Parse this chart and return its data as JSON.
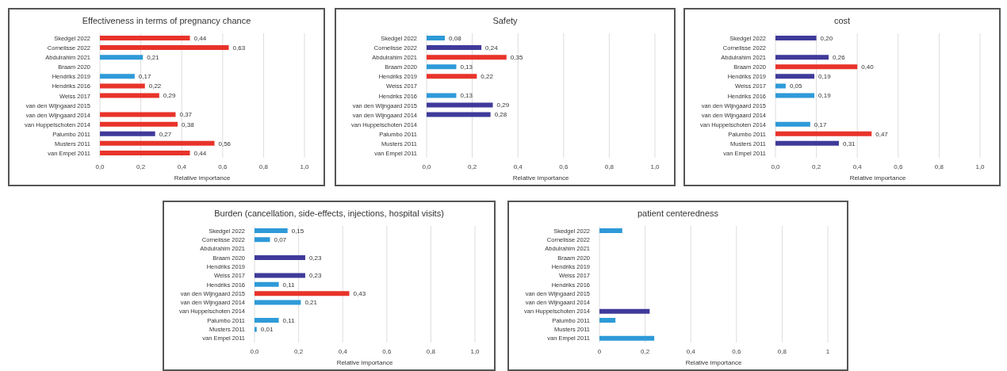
{
  "chart_data": [
    {
      "type": "bar",
      "orientation": "horizontal",
      "title": "Effectiveness in terms of pregnancy chance",
      "xlabel": "Relative importance",
      "grid": "x",
      "categories": [
        "Skedgel 2022",
        "Cornelisse 2022",
        "Abdulrahim 2021",
        "Braam 2020",
        "Hendriks 2019",
        "Hendriks 2016",
        "Weiss 2017",
        "van den Wijngaard 2015",
        "van den Wijngaard 2014",
        "van Huppelschoten 2014",
        "Palumbo 2011",
        "Musters 2011",
        "van Empel 2011"
      ],
      "values": [
        0.44,
        0.63,
        0.21,
        null,
        0.17,
        0.22,
        0.29,
        null,
        0.37,
        0.38,
        0.27,
        0.56,
        0.44
      ],
      "colors": [
        "#e8332a",
        "#e8332a",
        "#2e9ad8",
        null,
        "#2e9ad8",
        "#e8332a",
        "#e8332a",
        null,
        "#e8332a",
        "#e8332a",
        "#3f3a9a",
        "#e8332a",
        "#e8332a"
      ],
      "value_labels": [
        "0,44",
        "0,63",
        "0,21",
        null,
        "0,17",
        "0,22",
        "0,29",
        null,
        "0,37",
        "0,38",
        "0,27",
        "0,56",
        "0,44"
      ],
      "xlim": [
        0,
        1
      ],
      "xticks": [
        {
          "value": 0,
          "label": "0,0"
        },
        {
          "value": 0.2,
          "label": "0,2"
        },
        {
          "value": 0.4,
          "label": "0,4"
        },
        {
          "value": 0.6,
          "label": "0,6"
        },
        {
          "value": 0.8,
          "label": "0,8"
        },
        {
          "value": 1,
          "label": "1,0"
        }
      ]
    },
    {
      "type": "bar",
      "orientation": "horizontal",
      "title": "Safety",
      "xlabel": "Relative importance",
      "grid": "x",
      "categories": [
        "Skedgel 2022",
        "Cornelisse 2022",
        "Abdulrahim 2021",
        "Braam 2020",
        "Hendriks 2019",
        "Weiss 2017",
        "Hendriks 2016",
        "van den Wijngaard 2015",
        "van den Wijngaard 2014",
        "van Huppelschoten 2014",
        "Palumbo 2011",
        "Musters 2011",
        "van Empel 2011"
      ],
      "values": [
        0.08,
        0.24,
        0.35,
        0.13,
        0.22,
        null,
        0.13,
        0.29,
        0.28,
        null,
        null,
        null,
        null
      ],
      "colors": [
        "#2e9ad8",
        "#3f3a9a",
        "#e8332a",
        "#2e9ad8",
        "#e8332a",
        null,
        "#2e9ad8",
        "#3f3a9a",
        "#3f3a9a",
        null,
        null,
        null,
        null
      ],
      "value_labels": [
        "0,08",
        "0,24",
        "0,35",
        "0,13",
        "0,22",
        null,
        "0,13",
        "0,29",
        "0,28",
        null,
        null,
        null,
        null
      ],
      "xlim": [
        0,
        1
      ],
      "xticks": [
        {
          "value": 0,
          "label": "0,0"
        },
        {
          "value": 0.2,
          "label": "0,2"
        },
        {
          "value": 0.4,
          "label": "0,4"
        },
        {
          "value": 0.6,
          "label": "0,6"
        },
        {
          "value": 0.8,
          "label": "0,8"
        },
        {
          "value": 1,
          "label": "1,0"
        }
      ]
    },
    {
      "type": "bar",
      "orientation": "horizontal",
      "title": "cost",
      "xlabel": "Relative importance",
      "grid": "x",
      "categories": [
        "Skedgel 2022",
        "Cornelisse 2022",
        "Abdulrahim 2021",
        "Braam 2020",
        "Hendriks 2019",
        "Weiss 2017",
        "Hendriks 2016",
        "van den Wijngaard 2015",
        "van den Wijngaard 2014",
        "van Huppelschoten 2014",
        "Palumbo 2011",
        "Musters 2011",
        "van Empel 2011"
      ],
      "values": [
        0.2,
        null,
        0.26,
        0.4,
        0.19,
        0.05,
        0.19,
        null,
        null,
        0.17,
        0.47,
        0.31,
        null
      ],
      "colors": [
        "#3f3a9a",
        null,
        "#3f3a9a",
        "#e8332a",
        "#3f3a9a",
        "#2e9ad8",
        "#2e9ad8",
        null,
        null,
        "#2e9ad8",
        "#e8332a",
        "#3f3a9a",
        null
      ],
      "value_labels": [
        "0,20",
        null,
        "0,26",
        "0,40",
        "0,19",
        "0,05",
        "0,19",
        null,
        null,
        "0,17",
        "0,47",
        "0,31",
        null
      ],
      "xlim": [
        0,
        1
      ],
      "xticks": [
        {
          "value": 0,
          "label": "0,0"
        },
        {
          "value": 0.2,
          "label": "0,2"
        },
        {
          "value": 0.4,
          "label": "0,4"
        },
        {
          "value": 0.6,
          "label": "0,6"
        },
        {
          "value": 0.8,
          "label": "0,8"
        },
        {
          "value": 1,
          "label": "1,0"
        }
      ]
    },
    {
      "type": "bar",
      "orientation": "horizontal",
      "title": "Burden (cancellation, side-effects, injections, hospital visits)",
      "xlabel": "Relative importance",
      "grid": "x",
      "categories": [
        "Skedgel 2022",
        "Cornelisse 2022",
        "Abdulrahim 2021",
        "Braam 2020",
        "Hendriks 2019",
        "Weiss 2017",
        "Hendriks 2016",
        "van den Wijngaard 2015",
        "van den Wijngaard 2014",
        "van Huppelschoten 2014",
        "Palumbo 2011",
        "Musters 2011",
        "van Empel 2011"
      ],
      "values": [
        0.15,
        0.07,
        null,
        0.23,
        null,
        0.23,
        0.11,
        0.43,
        0.21,
        null,
        0.11,
        0.01,
        null
      ],
      "colors": [
        "#2e9ad8",
        "#2e9ad8",
        null,
        "#3f3a9a",
        null,
        "#3f3a9a",
        "#2e9ad8",
        "#e8332a",
        "#2e9ad8",
        null,
        "#2e9ad8",
        "#2e9ad8",
        null
      ],
      "value_labels": [
        "0,15",
        "0,07",
        null,
        "0,23",
        null,
        "0,23",
        "0,11",
        "0,43",
        "0,21",
        null,
        "0,11",
        "0,01",
        null
      ],
      "xlim": [
        0,
        1
      ],
      "xticks": [
        {
          "value": 0,
          "label": "0,0"
        },
        {
          "value": 0.2,
          "label": "0,2"
        },
        {
          "value": 0.4,
          "label": "0,4"
        },
        {
          "value": 0.6,
          "label": "0,6"
        },
        {
          "value": 0.8,
          "label": "0,8"
        },
        {
          "value": 1,
          "label": "1,0"
        }
      ]
    },
    {
      "type": "bar",
      "orientation": "horizontal",
      "title": "patient centeredness",
      "xlabel": "Relative importance",
      "grid": "x",
      "categories": [
        "Skedgel 2022",
        "Cornelisse 2022",
        "Abdulrahim 2021",
        "Braam 2020",
        "Hendriks 2019",
        "Weiss 2017",
        "Hendriks 2016",
        "van den Wijngaard 2015",
        "van den Wijngaard 2014",
        "van Huppelschoten 2014",
        "Palumbo 2011",
        "Musters 2011",
        "van Empel 2011"
      ],
      "values": [
        0.1,
        null,
        null,
        null,
        null,
        null,
        null,
        null,
        null,
        0.22,
        0.07,
        null,
        0.24
      ],
      "colors": [
        "#2e9ad8",
        null,
        null,
        null,
        null,
        null,
        null,
        null,
        null,
        "#3f3a9a",
        "#2e9ad8",
        null,
        "#2e9ad8"
      ],
      "xlim": [
        0,
        1
      ],
      "xticks": [
        0,
        {
          "value": 0.2,
          "label": "0,2"
        },
        {
          "value": 0.4,
          "label": "0,4"
        },
        {
          "value": 0.6,
          "label": "0,6"
        },
        {
          "value": 0.8,
          "label": "0,8"
        },
        1
      ]
    }
  ]
}
